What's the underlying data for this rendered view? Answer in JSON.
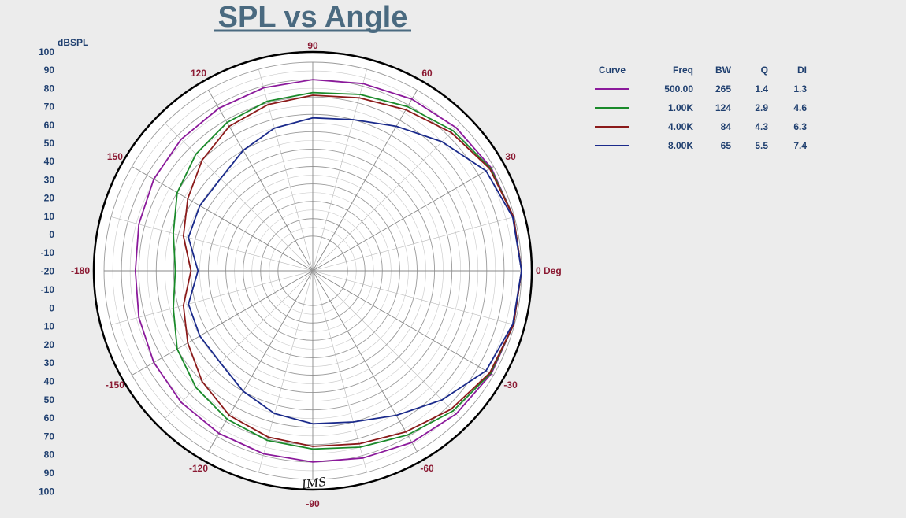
{
  "chart_data": {
    "type": "polar-line",
    "title": "SPL vs Angle",
    "radial_unit": "dBSPL",
    "radial_range": [
      -20,
      100
    ],
    "radial_labels_top": [
      "100",
      "90",
      "80",
      "70",
      "60",
      "50",
      "40",
      "30",
      "20",
      "10",
      "0",
      "-10",
      "-20"
    ],
    "radial_labels_bottom": [
      "-10",
      "0",
      "10",
      "20",
      "30",
      "40",
      "50",
      "60",
      "70",
      "80",
      "90",
      "100"
    ],
    "angle_labels": [
      {
        "angle": 0,
        "text": "0 Deg"
      },
      {
        "angle": 30,
        "text": "30"
      },
      {
        "angle": 60,
        "text": "60"
      },
      {
        "angle": 90,
        "text": "90"
      },
      {
        "angle": 120,
        "text": "120"
      },
      {
        "angle": 150,
        "text": "150"
      },
      {
        "angle": 180,
        "text": "-180"
      },
      {
        "angle": -150,
        "text": "-150"
      },
      {
        "angle": -120,
        "text": "-120"
      },
      {
        "angle": -90,
        "text": "-90"
      },
      {
        "angle": -60,
        "text": "-60"
      },
      {
        "angle": -30,
        "text": "-30"
      }
    ],
    "grid": true,
    "legend_position": "right",
    "legend_columns": [
      "Curve",
      "Freq",
      "BW",
      "Q",
      "DI"
    ],
    "series": [
      {
        "freq": "500.00",
        "bw": "265",
        "q": "1.4",
        "di": "1.3",
        "color": "#8b1a9b",
        "points": [
          [
            0,
            100
          ],
          [
            15,
            99.5
          ],
          [
            30,
            98.5
          ],
          [
            45,
            96.5
          ],
          [
            60,
            94
          ],
          [
            75,
            91.5
          ],
          [
            90,
            90
          ],
          [
            105,
            89
          ],
          [
            120,
            88
          ],
          [
            135,
            87
          ],
          [
            150,
            85.5
          ],
          [
            165,
            83.5
          ],
          [
            180,
            82
          ],
          [
            -165,
            83.5
          ],
          [
            -150,
            85.5
          ],
          [
            -135,
            87
          ],
          [
            -120,
            88
          ],
          [
            -105,
            89
          ],
          [
            -90,
            90
          ],
          [
            -75,
            91.5
          ],
          [
            -60,
            94
          ],
          [
            -45,
            96.5
          ],
          [
            -30,
            98.5
          ],
          [
            -15,
            99.5
          ],
          [
            0,
            100
          ]
        ]
      },
      {
        "freq": "1.00K",
        "bw": "124",
        "q": "2.9",
        "di": "4.6",
        "color": "#1a8a2a",
        "points": [
          [
            0,
            100
          ],
          [
            15,
            99.5
          ],
          [
            30,
            98
          ],
          [
            45,
            94
          ],
          [
            60,
            89
          ],
          [
            75,
            85
          ],
          [
            90,
            82.5
          ],
          [
            105,
            81
          ],
          [
            120,
            78.5
          ],
          [
            135,
            75
          ],
          [
            150,
            70
          ],
          [
            165,
            63
          ],
          [
            180,
            59
          ],
          [
            -165,
            63
          ],
          [
            -150,
            70
          ],
          [
            -135,
            75
          ],
          [
            -120,
            78.5
          ],
          [
            -105,
            81
          ],
          [
            -90,
            82.5
          ],
          [
            -75,
            85
          ],
          [
            -60,
            89
          ],
          [
            -45,
            94
          ],
          [
            -30,
            98
          ],
          [
            -15,
            99.5
          ],
          [
            0,
            100
          ]
        ]
      },
      {
        "freq": "4.00K",
        "bw": "84",
        "q": "4.3",
        "di": "6.3",
        "color": "#8b1a1a",
        "points": [
          [
            0,
            100
          ],
          [
            15,
            99.5
          ],
          [
            30,
            97.5
          ],
          [
            45,
            92.5
          ],
          [
            60,
            87
          ],
          [
            75,
            83
          ],
          [
            90,
            81
          ],
          [
            105,
            79
          ],
          [
            120,
            76
          ],
          [
            135,
            70
          ],
          [
            150,
            63
          ],
          [
            165,
            57
          ],
          [
            180,
            50
          ],
          [
            -165,
            57
          ],
          [
            -150,
            63
          ],
          [
            -135,
            70
          ],
          [
            -120,
            76
          ],
          [
            -105,
            79
          ],
          [
            -90,
            81
          ],
          [
            -75,
            83
          ],
          [
            -60,
            87
          ],
          [
            -45,
            92.5
          ],
          [
            -30,
            97.5
          ],
          [
            -15,
            99.5
          ],
          [
            0,
            100
          ]
        ]
      },
      {
        "freq": "8.00K",
        "bw": "65",
        "q": "5.5",
        "di": "7.4",
        "color": "#1a2a8b",
        "points": [
          [
            0,
            100
          ],
          [
            15,
            99
          ],
          [
            30,
            95
          ],
          [
            45,
            85
          ],
          [
            60,
            76
          ],
          [
            75,
            70
          ],
          [
            90,
            68
          ],
          [
            105,
            65
          ],
          [
            120,
            60
          ],
          [
            135,
            55
          ],
          [
            150,
            55
          ],
          [
            165,
            54
          ],
          [
            180,
            46
          ],
          [
            -165,
            54
          ],
          [
            -150,
            55
          ],
          [
            -135,
            55
          ],
          [
            -120,
            60
          ],
          [
            -105,
            65
          ],
          [
            -90,
            68
          ],
          [
            -75,
            70
          ],
          [
            -60,
            76
          ],
          [
            -45,
            85
          ],
          [
            -30,
            95
          ],
          [
            -15,
            99
          ],
          [
            0,
            100
          ]
        ]
      }
    ]
  },
  "watermark": "IMS"
}
